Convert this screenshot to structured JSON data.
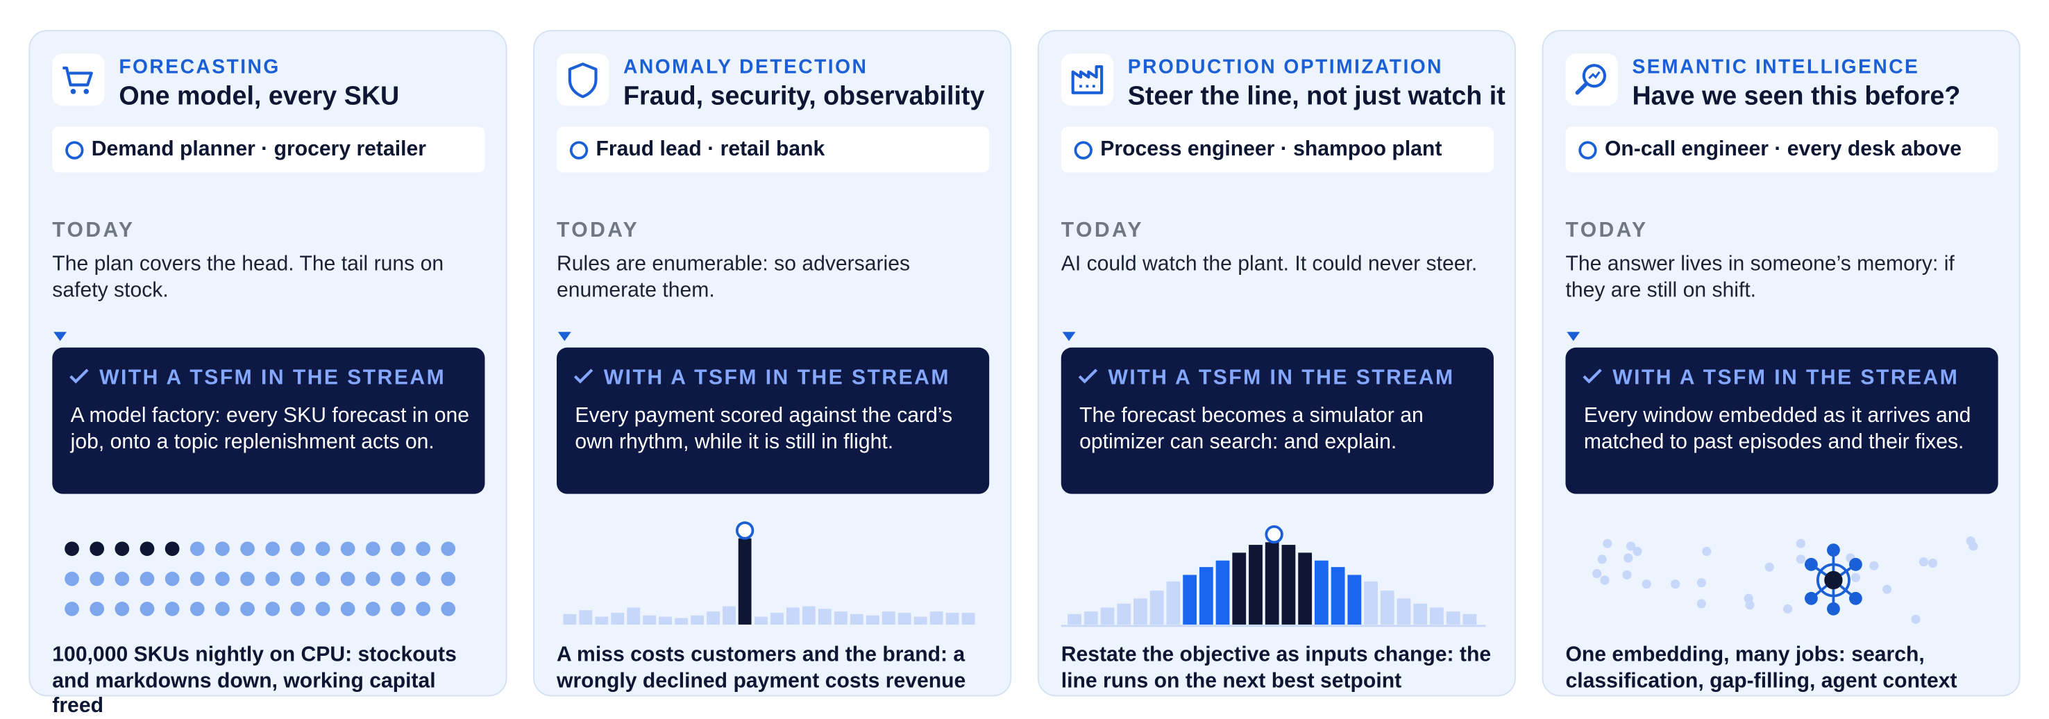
{
  "cards": [
    {
      "category": "FORECASTING",
      "title": "One model, every SKU",
      "persona": "Demand planner · grocery retailer",
      "today_label": "TODAY",
      "today_text": "The plan covers the head. The tail runs on safety stock.",
      "stream_label": "WITH A TSFM IN THE STREAM",
      "stream_text": "A model factory: every SKU forecast in one job, onto a topic replenishment acts on.",
      "footer": "100,000 SKUs nightly on CPU: stockouts and markdowns down, working capital freed"
    },
    {
      "category": "ANOMALY DETECTION",
      "title": "Fraud, security, observability",
      "persona": "Fraud lead · retail bank",
      "today_label": "TODAY",
      "today_text": "Rules are enumerable: so adversaries enumerate them.",
      "stream_label": "WITH A TSFM IN THE STREAM",
      "stream_text": "Every payment scored against the card’s own rhythm, while it is still in flight.",
      "footer": "A miss costs customers and the brand: a wrongly declined payment costs revenue"
    },
    {
      "category": "PRODUCTION OPTIMIZATION",
      "title": "Steer the line, not just watch it",
      "persona": "Process engineer · shampoo plant",
      "today_label": "TODAY",
      "today_text": "AI could watch the plant. It could never steer.",
      "stream_label": "WITH A TSFM IN THE STREAM",
      "stream_text": "The forecast becomes a simulator an optimizer can search: and explain.",
      "footer": "Restate the objective as inputs change: the line runs on the next best setpoint"
    },
    {
      "category": "SEMANTIC INTELLIGENCE",
      "title": "Have we seen this before?",
      "persona": "On-call engineer · every desk above",
      "today_label": "TODAY",
      "today_text": "The answer lives in someone’s memory: if they are still on shift.",
      "stream_label": "WITH A TSFM IN THE STREAM",
      "stream_text": "Every window embedded as it arrives and matched to past episodes and their fixes.",
      "footer": "One embedding, many jobs: search, classification, gap-filling, agent context"
    }
  ]
}
